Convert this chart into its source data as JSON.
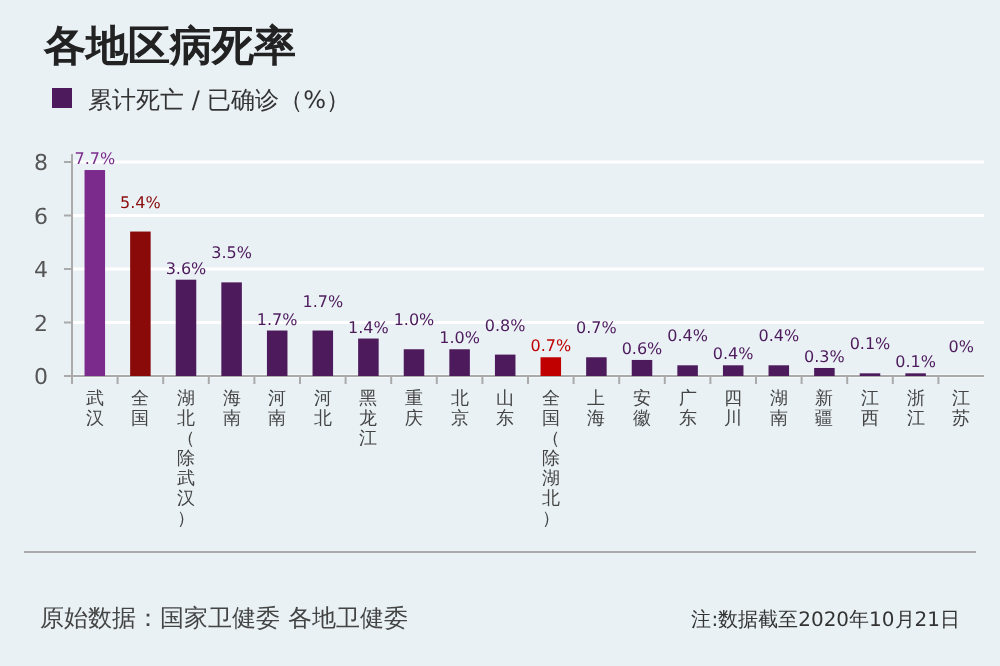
{
  "chart_data": {
    "type": "bar",
    "title": "各地区病死率",
    "categories": [
      "武汉",
      "全国",
      "湖北（除武汉）",
      "海南",
      "河南",
      "河北",
      "黑龙江",
      "重庆",
      "北京",
      "山东",
      "全国（除湖北）",
      "上海",
      "安徽",
      "广东",
      "四川",
      "湖南",
      "新疆",
      "江西",
      "浙江",
      "江苏"
    ],
    "series": [
      {
        "name": "累计死亡 / 已确诊（%）",
        "color": "#4d1a5c",
        "colors": [
          "#7b2b8c",
          "#8a0a0a",
          "#4d1a5c",
          "#4d1a5c",
          "#4d1a5c",
          "#4d1a5c",
          "#4d1a5c",
          "#4d1a5c",
          "#4d1a5c",
          "#4d1a5c",
          "#c00000",
          "#4d1a5c",
          "#4d1a5c",
          "#4d1a5c",
          "#4d1a5c",
          "#4d1a5c",
          "#4d1a5c",
          "#4d1a5c",
          "#4d1a5c",
          "#4d1a5c"
        ],
        "values": [
          7.7,
          5.4,
          3.6,
          3.5,
          1.7,
          1.7,
          1.4,
          1.0,
          1.0,
          0.8,
          0.7,
          0.7,
          0.6,
          0.4,
          0.4,
          0.4,
          0.3,
          0.1,
          0.1,
          0
        ],
        "value_labels": [
          "7.7%",
          "5.4%",
          "3.6%",
          "3.5%",
          "1.7%",
          "1.7%",
          "1.4%",
          "1.0%",
          "1.0%",
          "0.8%",
          "0.7%",
          "0.7%",
          "0.6%",
          "0.4%",
          "0.4%",
          "0.4%",
          "0.3%",
          "0.1%",
          "0.1%",
          "0%"
        ]
      }
    ],
    "ylim": [
      0,
      8
    ],
    "yticks": [
      0,
      2,
      4,
      6,
      8
    ],
    "grid": "y",
    "legend": "top left",
    "annotations": [
      "原始数据：国家卫健委 各地卫健委",
      "注:数据截至2020年10月21日"
    ]
  }
}
